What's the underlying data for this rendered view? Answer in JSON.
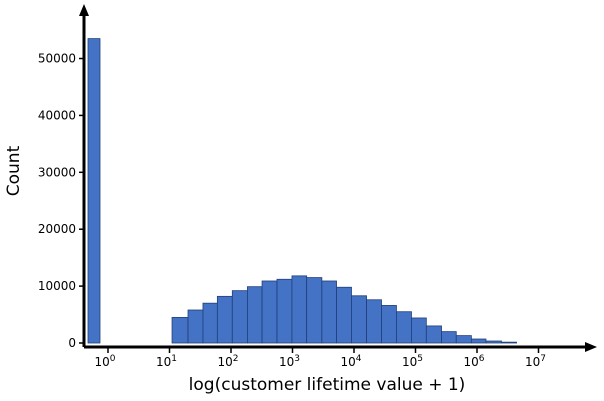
{
  "chart_data": {
    "type": "bar",
    "xlabel": "log(customer lifetime value + 1)",
    "ylabel": "Count",
    "x_scale": "log",
    "ylim": [
      0,
      58000
    ],
    "y_ticks": [
      0,
      10000,
      20000,
      30000,
      40000,
      50000
    ],
    "x_ticks": [
      {
        "base": "10",
        "exp": "0"
      },
      {
        "base": "10",
        "exp": "1"
      },
      {
        "base": "10",
        "exp": "2"
      },
      {
        "base": "10",
        "exp": "3"
      },
      {
        "base": "10",
        "exp": "4"
      },
      {
        "base": "10",
        "exp": "5"
      },
      {
        "base": "10",
        "exp": "6"
      },
      {
        "base": "10",
        "exp": "7"
      }
    ],
    "bins": [
      {
        "x0": 1,
        "x1": 1.8,
        "count": 53500
      },
      {
        "x0": 11,
        "x1": 20,
        "count": 4500
      },
      {
        "x0": 20,
        "x1": 35,
        "count": 5800
      },
      {
        "x0": 35,
        "x1": 60,
        "count": 7000
      },
      {
        "x0": 60,
        "x1": 105,
        "count": 8200
      },
      {
        "x0": 105,
        "x1": 185,
        "count": 9200
      },
      {
        "x0": 185,
        "x1": 320,
        "count": 9900
      },
      {
        "x0": 320,
        "x1": 560,
        "count": 10900
      },
      {
        "x0": 560,
        "x1": 980,
        "count": 11200
      },
      {
        "x0": 980,
        "x1": 1700,
        "count": 11800
      },
      {
        "x0": 1700,
        "x1": 3000,
        "count": 11500
      },
      {
        "x0": 3000,
        "x1": 5200,
        "count": 10900
      },
      {
        "x0": 5200,
        "x1": 9100,
        "count": 9800
      },
      {
        "x0": 9100,
        "x1": 16000,
        "count": 8300
      },
      {
        "x0": 16000,
        "x1": 28000,
        "count": 7600
      },
      {
        "x0": 28000,
        "x1": 49000,
        "count": 6600
      },
      {
        "x0": 49000,
        "x1": 86000,
        "count": 5500
      },
      {
        "x0": 86000,
        "x1": 150000,
        "count": 4400
      },
      {
        "x0": 150000,
        "x1": 265000,
        "count": 3000
      },
      {
        "x0": 265000,
        "x1": 460000,
        "count": 2000
      },
      {
        "x0": 460000,
        "x1": 810000,
        "count": 1300
      },
      {
        "x0": 810000,
        "x1": 1400000,
        "count": 700
      },
      {
        "x0": 1400000,
        "x1": 2500000,
        "count": 350
      },
      {
        "x0": 2500000,
        "x1": 4400000,
        "count": 150
      }
    ],
    "colors": {
      "bar": "#4472c4",
      "bar_edge": "#1f3f7a",
      "axis": "#000000"
    },
    "grid": false,
    "legend": "none"
  }
}
